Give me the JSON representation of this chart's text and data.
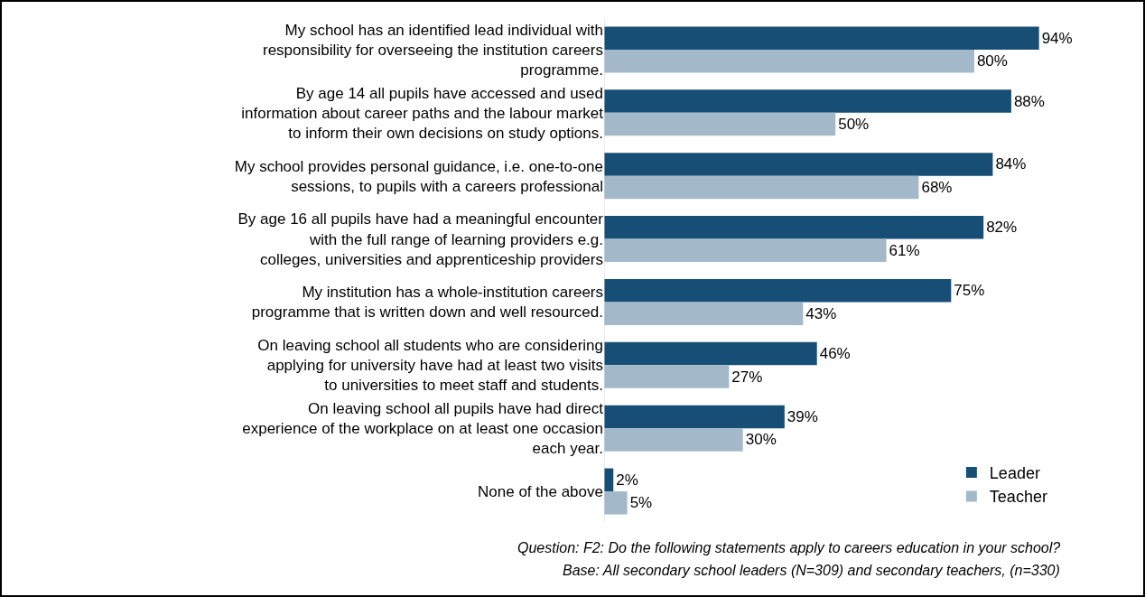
{
  "chart_data": {
    "type": "bar",
    "orientation": "horizontal",
    "categories": [
      "My school has an identified lead individual with responsibility for overseeing the institution careers programme.",
      "By age 14 all pupils have accessed and used information about career paths and the labour market to inform their own decisions on study options.",
      "My school provides personal guidance, i.e. one-to-one sessions, to pupils with a careers professional",
      "By age 16 all pupils have had a meaningful encounter with the full range of learning providers e.g. colleges, universities and apprenticeship providers",
      "My institution has a whole-institution careers programme that is written down and well resourced.",
      "On leaving school all students who are considering applying for university have had at least two visits to universities to meet staff and students.",
      "On leaving school all pupils have had direct experience of the workplace on at least one occasion each year.",
      "None of the above"
    ],
    "series": [
      {
        "name": "Leader",
        "color": "#174e76",
        "values": [
          94,
          88,
          84,
          82,
          75,
          46,
          39,
          2
        ],
        "value_labels": [
          "94%",
          "88%",
          "84%",
          "82%",
          "75%",
          "46%",
          "39%",
          "2%"
        ]
      },
      {
        "name": "Teacher",
        "color": "#a3b9c9",
        "values": [
          80,
          50,
          68,
          61,
          43,
          27,
          30,
          5
        ],
        "value_labels": [
          "80%",
          "50%",
          "68%",
          "61%",
          "43%",
          "27%",
          "30%",
          "5%"
        ]
      }
    ],
    "legend": "bottom right",
    "grid": false,
    "annotations": [
      "Question: F2: Do the following statements apply to careers education in your school?",
      "Base: All secondary school leaders (N=309) and secondary teachers, (n=330)"
    ]
  }
}
